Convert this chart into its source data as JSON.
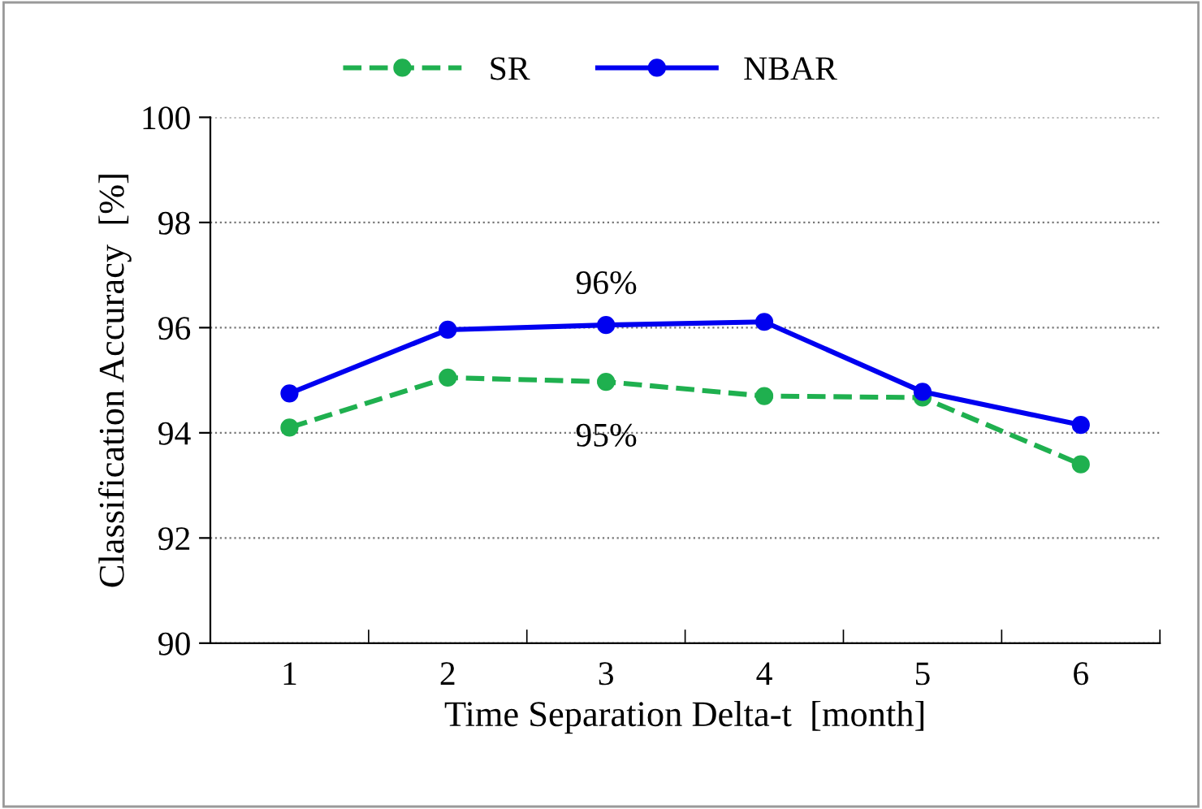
{
  "chart_data": {
    "type": "line",
    "xlabel": "Time Separation Delta-t  [month]",
    "ylabel": "Classification Accuracy  [%]",
    "categories": [
      "1",
      "2",
      "3",
      "4",
      "5",
      "6"
    ],
    "series": [
      {
        "name": "SR",
        "color": "#1fb04f",
        "values": [
          94.1,
          95.05,
          94.97,
          94.7,
          94.67,
          93.4
        ],
        "line_style": "dashed"
      },
      {
        "name": "NBAR",
        "color": "#0000f0",
        "values": [
          94.75,
          95.96,
          96.05,
          96.11,
          94.78,
          94.15
        ],
        "line_style": "solid"
      }
    ],
    "ylim": [
      90,
      100
    ],
    "yticks": [
      90,
      92,
      94,
      96,
      98,
      100
    ],
    "grid": "y",
    "legend": "top",
    "marker": "circle",
    "annotations": [
      "96%",
      "95%"
    ]
  }
}
